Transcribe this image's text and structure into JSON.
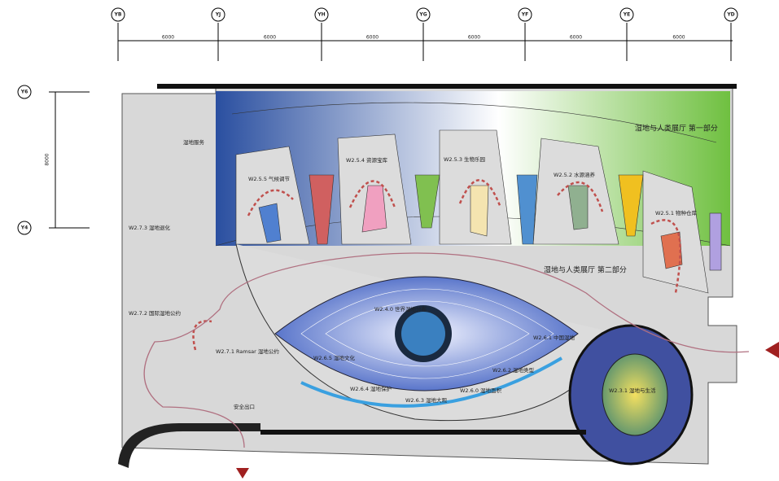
{
  "grid": {
    "columns": [
      "YB",
      "YJ",
      "YH",
      "YG",
      "YF",
      "YE",
      "YD"
    ],
    "dimensions": [
      "6000",
      "6000",
      "6000",
      "6000",
      "6000",
      "6000"
    ],
    "rows": [
      "Y6",
      "Y4"
    ],
    "row_dimension": "8000"
  },
  "rooms": [
    {
      "label": "W2.5.5 气候调节"
    },
    {
      "label": "W2.5.4 资源宝库"
    },
    {
      "label": "W2.5.3 生物乐园"
    },
    {
      "label": "W2.5.2 水源涵养"
    },
    {
      "label": "W2.5.1 物种仓库"
    },
    {
      "label": "湿地与人类展厅 第一部分"
    },
    {
      "label": "湿地与人类展厅 第二部分"
    },
    {
      "label": "W2.4.0 世界湿地分布"
    },
    {
      "label": "W2.6.1 中国湿地"
    },
    {
      "label": "W2.6.5 湿地文化"
    },
    {
      "label": "W2.6.4 湿地保护"
    },
    {
      "label": "W2.6.3 湿地大观"
    },
    {
      "label": "W2.6.2 湿地类型"
    },
    {
      "label": "W2.6.0 湿地面积"
    },
    {
      "label": "W2.3.1 湿地与生活"
    },
    {
      "label": "W2.7.3 湿地退化"
    },
    {
      "label": "W2.7.2 国际湿地公约"
    },
    {
      "label": "W2.7.1 Ramsar 湿地公约"
    },
    {
      "label": "湿地服务"
    }
  ],
  "exit": "安全出口"
}
